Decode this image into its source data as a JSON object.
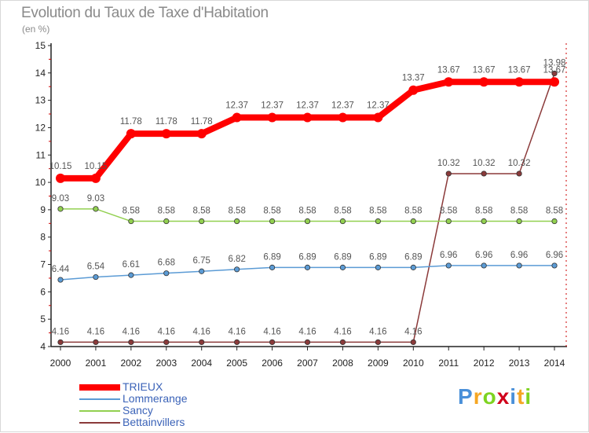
{
  "chart_data": {
    "type": "line",
    "title": "Evolution du Taux de Taxe d'Habitation",
    "subtitle": "(en %)",
    "xlabel": "",
    "ylabel": "",
    "x": [
      "2000",
      "2001",
      "2002",
      "2003",
      "2004",
      "2005",
      "2006",
      "2007",
      "2008",
      "2009",
      "2010",
      "2011",
      "2012",
      "2013",
      "2014"
    ],
    "ylim": [
      4,
      15
    ],
    "yticks": [
      4,
      5,
      6,
      7,
      8,
      9,
      10,
      11,
      12,
      13,
      14,
      15
    ],
    "grid": false,
    "legend_position": "bottom-left",
    "series": [
      {
        "name": "TRIEUX",
        "color": "#ff0000",
        "values": [
          10.15,
          10.15,
          11.78,
          11.78,
          11.78,
          12.37,
          12.37,
          12.37,
          12.37,
          12.37,
          13.37,
          13.67,
          13.67,
          13.67,
          13.67
        ],
        "labels": [
          "10.15",
          "10.15",
          "11.78",
          "11.78",
          "11.78",
          "12.37",
          "12.37",
          "12.37",
          "12.37",
          "12.37",
          "13.37",
          "13.67",
          "13.67",
          "13.67",
          "13.67"
        ]
      },
      {
        "name": "Lommerange",
        "color": "#5b9bd5",
        "values": [
          6.44,
          6.54,
          6.61,
          6.68,
          6.75,
          6.82,
          6.89,
          6.89,
          6.89,
          6.89,
          6.89,
          6.96,
          6.96,
          6.96,
          6.96
        ],
        "labels": [
          "6.44",
          "6.54",
          "6.61",
          "6.68",
          "6.75",
          "6.82",
          "6.89",
          "6.89",
          "6.89",
          "6.89",
          "6.89",
          "6.96",
          "6.96",
          "6.96",
          "6.96"
        ]
      },
      {
        "name": "Sancy",
        "color": "#92d050",
        "values": [
          9.03,
          9.03,
          8.58,
          8.58,
          8.58,
          8.58,
          8.58,
          8.58,
          8.58,
          8.58,
          8.58,
          8.58,
          8.58,
          8.58,
          8.58
        ],
        "labels": [
          "9.03",
          "9.03",
          "8.58",
          "8.58",
          "8.58",
          "8.58",
          "8.58",
          "8.58",
          "8.58",
          "8.58",
          "8.58",
          "8.58",
          "8.58",
          "8.58",
          "8.58"
        ]
      },
      {
        "name": "Bettainvillers",
        "color": "#8b3a3a",
        "values": [
          4.16,
          4.16,
          4.16,
          4.16,
          4.16,
          4.16,
          4.16,
          4.16,
          4.16,
          4.16,
          4.16,
          10.32,
          10.32,
          10.32,
          13.98
        ],
        "labels": [
          "4.16",
          "4.16",
          "4.16",
          "4.16",
          "4.16",
          "4.16",
          "4.16",
          "4.16",
          "4.16",
          "4.16",
          "4.16",
          "10.32",
          "10.32",
          "10.32",
          "13.98"
        ]
      }
    ]
  },
  "logo": {
    "letters": [
      "P",
      "r",
      "o",
      "x",
      "i",
      "t",
      "i"
    ],
    "colors": [
      "#4a90d9",
      "#f5a623",
      "#7ed321",
      "#d0021b",
      "#4a90d9",
      "#f5a623",
      "#7ed321"
    ]
  }
}
